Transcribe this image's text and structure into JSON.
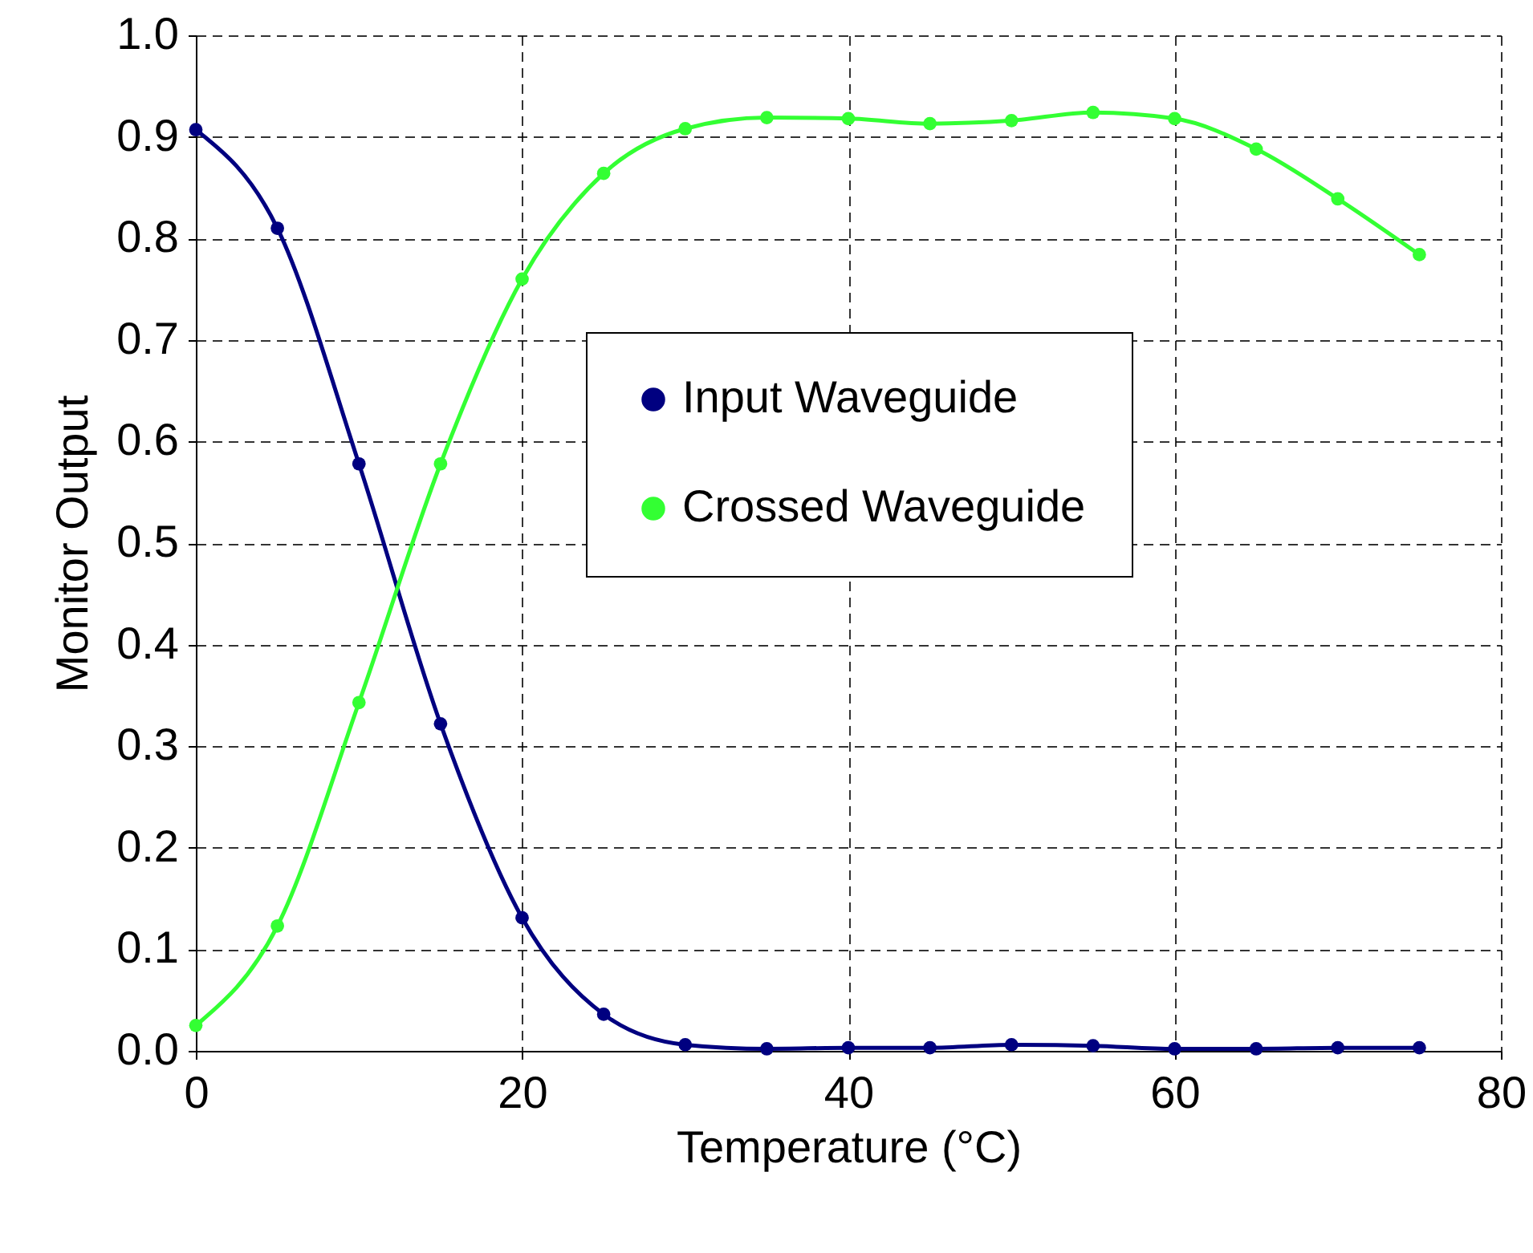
{
  "chart_data": {
    "type": "line",
    "xlabel": "Temperature (°C)",
    "ylabel": "Monitor Output",
    "x": [
      0,
      5,
      10,
      15,
      20,
      25,
      30,
      35,
      40,
      45,
      50,
      55,
      60,
      65,
      70,
      75
    ],
    "series": [
      {
        "name": "Input Waveguide",
        "color": "#000080",
        "values": [
          0.907,
          0.81,
          0.578,
          0.322,
          0.131,
          0.036,
          0.006,
          0.002,
          0.003,
          0.003,
          0.006,
          0.005,
          0.002,
          0.002,
          0.003,
          0.003
        ]
      },
      {
        "name": "Crossed Waveguide",
        "color": "#33ff33",
        "values": [
          0.025,
          0.123,
          0.343,
          0.578,
          0.76,
          0.864,
          0.908,
          0.919,
          0.918,
          0.913,
          0.916,
          0.924,
          0.918,
          0.888,
          0.839,
          0.784
        ]
      }
    ],
    "xlim": [
      0,
      80
    ],
    "xticks": [
      0,
      20,
      40,
      60,
      80
    ],
    "ylim": [
      0,
      1
    ],
    "yticks": [
      {
        "value": 0,
        "label": "0.0"
      },
      {
        "value": 0.1,
        "label": "0.1"
      },
      {
        "value": 0.2,
        "label": "0.2"
      },
      {
        "value": 0.3,
        "label": "0.3"
      },
      {
        "value": 0.4,
        "label": "0.4"
      },
      {
        "value": 0.5,
        "label": "0.5"
      },
      {
        "value": 0.6,
        "label": "0.6"
      },
      {
        "value": 0.7,
        "label": "0.7"
      },
      {
        "value": 0.8,
        "label": "0.8"
      },
      {
        "value": 0.9,
        "label": "0.9"
      },
      {
        "value": 1,
        "label": "1.0"
      }
    ],
    "grid": true,
    "legend": "right",
    "marker": "circle",
    "line_style": "solid"
  }
}
